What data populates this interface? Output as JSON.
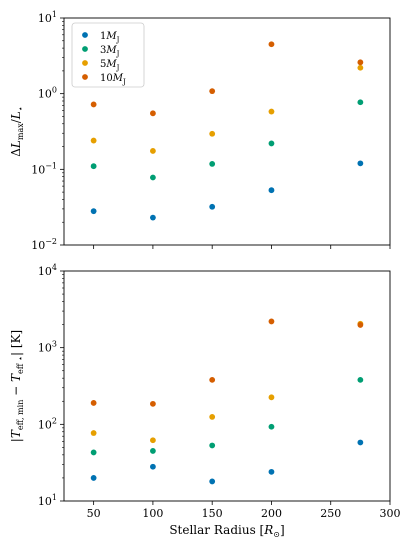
{
  "chart_data": [
    {
      "type": "scatter",
      "title": "",
      "xlabel": "",
      "ylabel": "ΔL_max/L_⋆",
      "yscale": "log",
      "xlim": [
        25,
        300
      ],
      "ylim": [
        0.01,
        10
      ],
      "x_ticks": [
        50,
        100,
        150,
        200,
        250,
        300
      ],
      "show_x_tick_labels": false,
      "y_ticks": [
        {
          "value": 0.01,
          "base": "10",
          "exp": "−2"
        },
        {
          "value": 0.1,
          "base": "10",
          "exp": "−1"
        },
        {
          "value": 1,
          "base": "10",
          "exp": "0"
        },
        {
          "value": 10,
          "base": "10",
          "exp": "1"
        }
      ],
      "legend": {
        "placement": "top-left",
        "entries": [
          {
            "prefix": "1",
            "sym": "M",
            "sub": "J",
            "series": 0
          },
          {
            "prefix": "3",
            "sym": "M",
            "sub": "J",
            "series": 1
          },
          {
            "prefix": "5",
            "sym": "M",
            "sub": "J",
            "series": 2
          },
          {
            "prefix": "10",
            "sym": "M",
            "sub": "J",
            "series": 3
          }
        ]
      },
      "x": [
        50,
        100,
        150,
        200,
        275
      ],
      "series": [
        {
          "name": "1M_J",
          "color": "#0072b2",
          "values": [
            0.028,
            0.023,
            0.032,
            0.053,
            0.12
          ]
        },
        {
          "name": "3M_J",
          "color": "#009e73",
          "values": [
            0.11,
            0.078,
            0.118,
            0.22,
            0.77
          ]
        },
        {
          "name": "5M_J",
          "color": "#e69f00",
          "values": [
            0.24,
            0.175,
            0.295,
            0.58,
            2.2
          ]
        },
        {
          "name": "10M_J",
          "color": "#d55e00",
          "values": [
            0.72,
            0.55,
            1.08,
            4.5,
            2.6
          ]
        }
      ]
    },
    {
      "type": "scatter",
      "title": "",
      "xlabel": "Stellar Radius [R_⊙]",
      "ylabel": "|T_eff,min − T_eff⋆| [K]",
      "yscale": "log",
      "xlim": [
        25,
        300
      ],
      "ylim": [
        10,
        10000
      ],
      "x_ticks": [
        50,
        100,
        150,
        200,
        250,
        300
      ],
      "show_x_tick_labels": true,
      "y_ticks": [
        {
          "value": 10,
          "base": "10",
          "exp": "1"
        },
        {
          "value": 100,
          "base": "10",
          "exp": "2"
        },
        {
          "value": 1000,
          "base": "10",
          "exp": "3"
        },
        {
          "value": 10000,
          "base": "10",
          "exp": "4"
        }
      ],
      "x": [
        50,
        100,
        150,
        200,
        275
      ],
      "series": [
        {
          "name": "1M_J",
          "color": "#0072b2",
          "values": [
            20,
            28,
            18,
            24,
            58
          ]
        },
        {
          "name": "3M_J",
          "color": "#009e73",
          "values": [
            43,
            45,
            53,
            93,
            380
          ]
        },
        {
          "name": "5M_J",
          "color": "#e69f00",
          "values": [
            77,
            62,
            125,
            225,
            2050
          ]
        },
        {
          "name": "10M_J",
          "color": "#d55e00",
          "values": [
            190,
            185,
            380,
            2200,
            1980
          ]
        }
      ]
    }
  ]
}
